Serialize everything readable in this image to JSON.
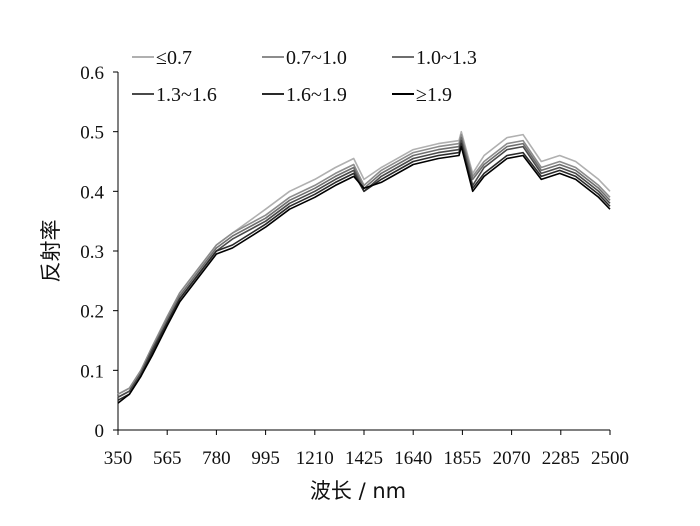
{
  "chart_data": {
    "type": "line",
    "title": "",
    "xlabel": "波长 / nm",
    "ylabel": "反射率",
    "xlim": [
      350,
      2500
    ],
    "ylim": [
      0,
      0.6
    ],
    "xticks": [
      "350",
      "565",
      "780",
      "995",
      "1210",
      "1425",
      "1640",
      "1855",
      "2070",
      "2285",
      "2500"
    ],
    "yticks": [
      "0",
      "0.1",
      "0.2",
      "0.3",
      "0.4",
      "0.5",
      "0.6"
    ],
    "grid": false,
    "legend_position": "top",
    "x": [
      350,
      400,
      450,
      500,
      565,
      620,
      700,
      780,
      850,
      995,
      1100,
      1210,
      1300,
      1380,
      1425,
      1500,
      1640,
      1750,
      1840,
      1850,
      1900,
      1950,
      2050,
      2120,
      2200,
      2280,
      2350,
      2450,
      2500
    ],
    "series": [
      {
        "name": "≤0.7",
        "color": "#b0b0b0",
        "values": [
          0.06,
          0.07,
          0.1,
          0.14,
          0.19,
          0.23,
          0.27,
          0.31,
          0.33,
          0.37,
          0.4,
          0.42,
          0.44,
          0.455,
          0.42,
          0.44,
          0.47,
          0.48,
          0.485,
          0.5,
          0.43,
          0.46,
          0.49,
          0.495,
          0.45,
          0.46,
          0.45,
          0.42,
          0.4
        ]
      },
      {
        "name": "0.7~1.0",
        "color": "#8c8c8c",
        "values": [
          0.06,
          0.07,
          0.1,
          0.14,
          0.19,
          0.23,
          0.27,
          0.31,
          0.33,
          0.36,
          0.39,
          0.41,
          0.43,
          0.445,
          0.41,
          0.435,
          0.465,
          0.475,
          0.48,
          0.495,
          0.425,
          0.45,
          0.48,
          0.485,
          0.44,
          0.45,
          0.44,
          0.41,
          0.39
        ]
      },
      {
        "name": "1.0~1.3",
        "color": "#6e6e6e",
        "values": [
          0.055,
          0.065,
          0.095,
          0.135,
          0.185,
          0.225,
          0.265,
          0.305,
          0.325,
          0.355,
          0.385,
          0.405,
          0.425,
          0.44,
          0.405,
          0.43,
          0.46,
          0.47,
          0.475,
          0.49,
          0.42,
          0.445,
          0.475,
          0.48,
          0.435,
          0.445,
          0.435,
          0.405,
          0.385
        ]
      },
      {
        "name": "1.3~1.6",
        "color": "#4a4a4a",
        "values": [
          0.055,
          0.065,
          0.095,
          0.135,
          0.18,
          0.22,
          0.26,
          0.3,
          0.32,
          0.35,
          0.38,
          0.4,
          0.42,
          0.435,
          0.4,
          0.425,
          0.455,
          0.465,
          0.47,
          0.485,
          0.41,
          0.44,
          0.47,
          0.475,
          0.43,
          0.44,
          0.43,
          0.4,
          0.38
        ]
      },
      {
        "name": "1.6~1.9",
        "color": "#2a2a2a",
        "values": [
          0.05,
          0.06,
          0.09,
          0.13,
          0.18,
          0.22,
          0.26,
          0.3,
          0.31,
          0.345,
          0.375,
          0.395,
          0.415,
          0.43,
          0.4,
          0.42,
          0.45,
          0.46,
          0.465,
          0.48,
          0.405,
          0.43,
          0.46,
          0.465,
          0.425,
          0.435,
          0.425,
          0.395,
          0.375
        ]
      },
      {
        "name": "≥1.9",
        "color": "#000000",
        "values": [
          0.045,
          0.06,
          0.09,
          0.125,
          0.175,
          0.215,
          0.255,
          0.295,
          0.305,
          0.34,
          0.37,
          0.39,
          0.41,
          0.425,
          0.405,
          0.415,
          0.445,
          0.455,
          0.46,
          0.475,
          0.4,
          0.425,
          0.455,
          0.46,
          0.42,
          0.43,
          0.42,
          0.39,
          0.37
        ]
      }
    ]
  }
}
